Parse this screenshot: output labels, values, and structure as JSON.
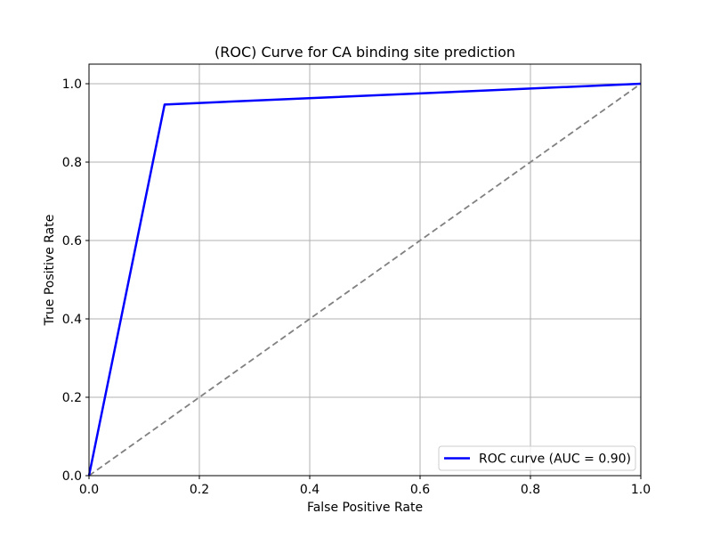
{
  "chart_data": {
    "type": "line",
    "title": "(ROC) Curve for CA binding site prediction",
    "xlabel": "False Positive Rate",
    "ylabel": "True Positive Rate",
    "xlim": [
      0.0,
      1.0
    ],
    "ylim": [
      0.0,
      1.05
    ],
    "xticks": [
      "0.0",
      "0.2",
      "0.4",
      "0.6",
      "0.8",
      "1.0"
    ],
    "yticks": [
      "0.0",
      "0.2",
      "0.4",
      "0.6",
      "0.8",
      "1.0"
    ],
    "grid": true,
    "legend_position": "lower-right",
    "series": [
      {
        "name": "ROC curve (AUC = 0.90)",
        "color": "#0000ff",
        "style": "solid",
        "x": [
          0.0,
          0.137,
          1.0
        ],
        "y": [
          0.0,
          0.947,
          1.0
        ]
      },
      {
        "color": "#808080",
        "style": "dashed",
        "x": [
          0.0,
          1.0
        ],
        "y": [
          0.0,
          1.0
        ]
      }
    ]
  }
}
